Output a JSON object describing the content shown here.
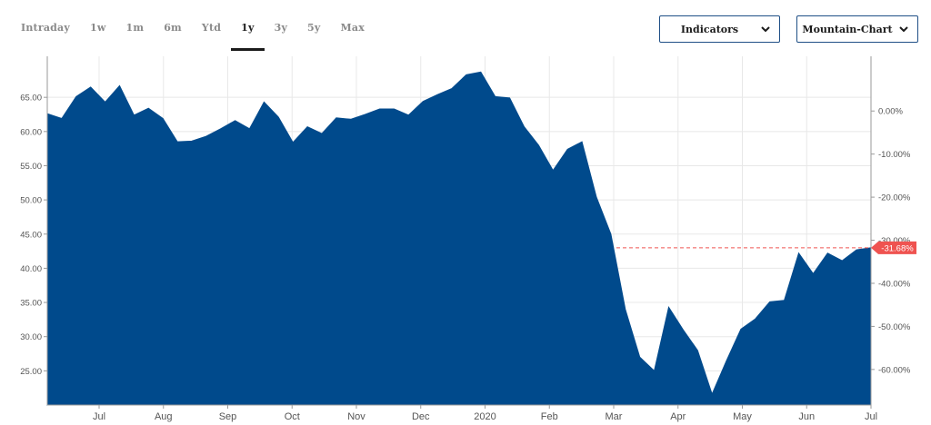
{
  "tabs": [
    {
      "label": "Intraday",
      "active": false
    },
    {
      "label": "1w",
      "active": false
    },
    {
      "label": "1m",
      "active": false
    },
    {
      "label": "6m",
      "active": false
    },
    {
      "label": "Ytd",
      "active": false
    },
    {
      "label": "1y",
      "active": true
    },
    {
      "label": "3y",
      "active": false
    },
    {
      "label": "5y",
      "active": false
    },
    {
      "label": "Max",
      "active": false
    }
  ],
  "indicators_dropdown": {
    "label": "Indicators",
    "icon": "chevron-down-icon"
  },
  "chart_type_dropdown": {
    "label": "Mountain-Chart",
    "icon": "chevron-down-icon"
  },
  "colors": {
    "area": "#004a8c",
    "marker": "#ef5350",
    "grid": "#e8e8e8",
    "axis_text": "#555555"
  },
  "chart_data": {
    "type": "area",
    "x_ticks": [
      "Jul",
      "Aug",
      "Sep",
      "Oct",
      "Nov",
      "Dec",
      "2020",
      "Feb",
      "Mar",
      "Apr",
      "May",
      "Jun",
      "Jul"
    ],
    "y_left_ticks": [
      "65.00",
      "60.00",
      "55.00",
      "50.00",
      "45.00",
      "40.00",
      "35.00",
      "30.00",
      "25.00"
    ],
    "y_left_values": [
      65,
      60,
      55,
      50,
      45,
      40,
      35,
      30,
      25
    ],
    "y_right_ticks": [
      "0.00%",
      "-10.00%",
      "-20.00%",
      "-30.00%",
      "-40.00%",
      "-50.00%",
      "-60.00%"
    ],
    "y_right_values": [
      0,
      -10,
      -20,
      -30,
      -40,
      -50,
      -60
    ],
    "ylim": [
      20,
      71
    ],
    "reference_price": 63.0,
    "current_change_label": "-31.68%",
    "series": [
      {
        "values": [
          62.6,
          61.9,
          65.1,
          66.5,
          64.3,
          66.7,
          62.4,
          63.4,
          61.9,
          58.5,
          58.6,
          59.3,
          60.4,
          61.6,
          60.4,
          64.3,
          62.1,
          58.4,
          60.7,
          59.7,
          62.0,
          61.8,
          62.5,
          63.3,
          63.3,
          62.4,
          64.4,
          65.4,
          66.3,
          68.3,
          68.7,
          65.1,
          64.9,
          60.7,
          58.0,
          54.3,
          57.4,
          58.5,
          50.4,
          45.0,
          34.0,
          27.0,
          25.0,
          34.3,
          31.0,
          28.0,
          21.6,
          26.5,
          31.1,
          32.6,
          35.1,
          35.3,
          42.2,
          39.2,
          42.2,
          41.1,
          42.7,
          43.0
        ]
      }
    ]
  }
}
